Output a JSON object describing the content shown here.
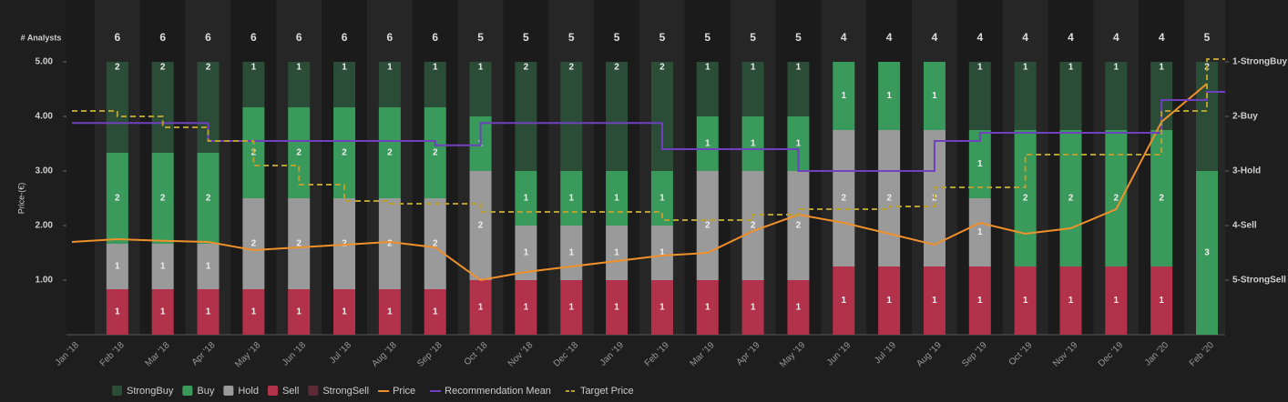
{
  "chart_data": {
    "type": "bar",
    "y_label": "Price-(€)",
    "count_label": "# Analysts",
    "categories": [
      "Jan '18",
      "Feb '18",
      "Mar '18",
      "Apr '18",
      "May '18",
      "Jun '18",
      "Jul '18",
      "Aug '18",
      "Sep '18",
      "Oct '18",
      "Nov '18",
      "Dec '18",
      "Jan '19",
      "Feb '19",
      "Mar '19",
      "Apr '19",
      "May '19",
      "Jun '19",
      "Jul '19",
      "Aug '19",
      "Sep '19",
      "Oct '19",
      "Nov '19",
      "Dec '19",
      "Jan '20",
      "Feb '20"
    ],
    "analyst_counts": [
      null,
      6,
      6,
      6,
      6,
      6,
      6,
      6,
      6,
      5,
      5,
      5,
      5,
      5,
      5,
      5,
      5,
      4,
      4,
      4,
      4,
      4,
      4,
      4,
      4,
      5
    ],
    "ylim": [
      0,
      5
    ],
    "yticks": [
      {
        "value": 1,
        "label": "1.00"
      },
      {
        "value": 2,
        "label": "2.00"
      },
      {
        "value": 3,
        "label": "3.00"
      },
      {
        "value": 4,
        "label": "4.00"
      },
      {
        "value": 5,
        "label": "5.00"
      }
    ],
    "y2lim": [
      6,
      1
    ],
    "y2ticks": [
      {
        "value": 1,
        "label": "1-StrongBuy"
      },
      {
        "value": 2,
        "label": "2-Buy"
      },
      {
        "value": 3,
        "label": "3-Hold"
      },
      {
        "value": 4,
        "label": "4-Sell"
      },
      {
        "value": 5,
        "label": "5-StrongSell"
      }
    ],
    "series": [
      {
        "name": "StrongBuy",
        "type": "bar",
        "color": "#2b4d37",
        "values": [
          null,
          2,
          2,
          2,
          1,
          1,
          1,
          1,
          1,
          1,
          2,
          2,
          2,
          2,
          1,
          1,
          1,
          0,
          0,
          0,
          1,
          1,
          1,
          1,
          1,
          2
        ]
      },
      {
        "name": "Buy",
        "type": "bar",
        "color": "#3a9a5c",
        "values": [
          null,
          2,
          2,
          2,
          2,
          2,
          2,
          2,
          2,
          1,
          1,
          1,
          1,
          1,
          1,
          1,
          1,
          1,
          1,
          1,
          1,
          2,
          2,
          2,
          2,
          3
        ]
      },
      {
        "name": "Hold",
        "type": "bar",
        "color": "#9a9a9a",
        "values": [
          null,
          1,
          1,
          1,
          2,
          2,
          2,
          2,
          2,
          2,
          1,
          1,
          1,
          1,
          2,
          2,
          2,
          2,
          2,
          2,
          1,
          0,
          0,
          0,
          0,
          0
        ]
      },
      {
        "name": "Sell",
        "type": "bar",
        "color": "#b3324b",
        "values": [
          null,
          1,
          1,
          1,
          1,
          1,
          1,
          1,
          1,
          1,
          1,
          1,
          1,
          1,
          1,
          1,
          1,
          1,
          1,
          1,
          1,
          1,
          1,
          1,
          1,
          0
        ]
      },
      {
        "name": "StrongSell",
        "type": "bar",
        "color": "#5c2a34",
        "values": [
          null,
          0,
          0,
          0,
          0,
          0,
          0,
          0,
          0,
          0,
          0,
          0,
          0,
          0,
          0,
          0,
          0,
          0,
          0,
          0,
          0,
          0,
          0,
          0,
          0,
          0
        ]
      },
      {
        "name": "Price",
        "type": "line",
        "color": "#f0902a",
        "values": [
          1.7,
          1.75,
          1.72,
          1.7,
          1.55,
          1.6,
          1.65,
          1.7,
          1.6,
          1.0,
          1.15,
          1.25,
          1.35,
          1.45,
          1.5,
          1.9,
          2.2,
          2.05,
          1.85,
          1.65,
          2.05,
          1.85,
          1.95,
          2.3,
          3.9,
          4.6
        ]
      },
      {
        "name": "Recommendation Mean",
        "type": "line",
        "step": true,
        "axis": "y2",
        "color": "#7040c0",
        "values": [
          2.12,
          2.12,
          2.12,
          2.45,
          2.45,
          2.45,
          2.45,
          2.45,
          2.53,
          2.12,
          2.12,
          2.12,
          2.12,
          2.6,
          2.6,
          2.6,
          3.0,
          3.0,
          3.0,
          2.45,
          2.3,
          2.3,
          2.3,
          2.3,
          1.7,
          1.55
        ]
      },
      {
        "name": "Target Price",
        "type": "line",
        "step": true,
        "dashed": true,
        "color": "#b8a030",
        "values": [
          4.1,
          4.0,
          3.8,
          3.55,
          3.1,
          2.75,
          2.45,
          2.4,
          2.4,
          2.25,
          2.25,
          2.25,
          2.25,
          2.1,
          2.1,
          2.2,
          2.3,
          2.3,
          2.35,
          2.7,
          2.7,
          3.3,
          3.3,
          3.3,
          4.1,
          5.05
        ]
      }
    ]
  }
}
